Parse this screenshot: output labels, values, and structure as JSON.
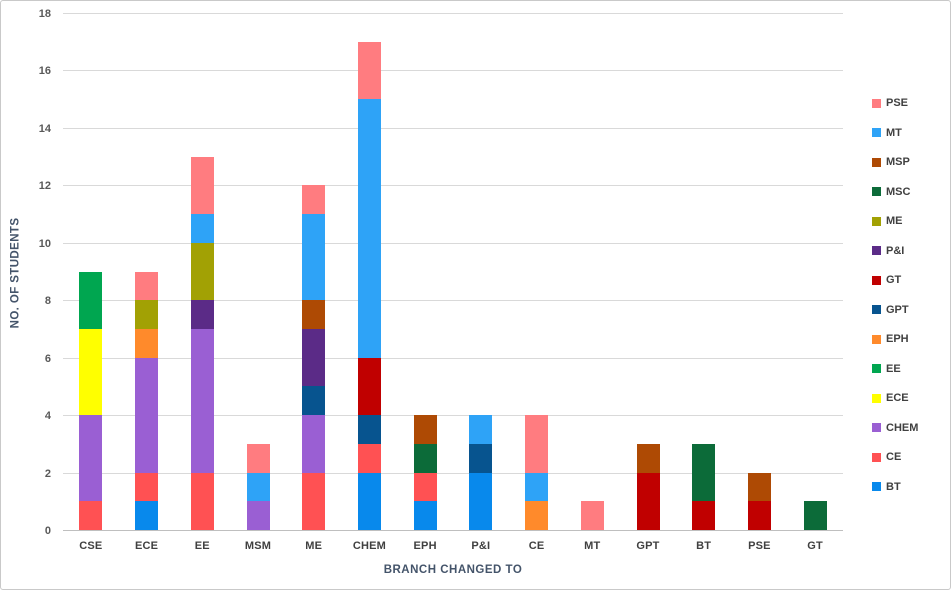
{
  "chart_data": {
    "type": "bar",
    "stacked": true,
    "title": "",
    "xlabel": "BRANCH CHANGED TO",
    "ylabel": "NO. OF STUDENTS",
    "ylim": [
      0,
      18
    ],
    "yticks": [
      0,
      2,
      4,
      6,
      8,
      10,
      12,
      14,
      16,
      18
    ],
    "grid": true,
    "legend_position": "right",
    "categories": [
      "CSE",
      "ECE",
      "EE",
      "MSM",
      "ME",
      "CHEM",
      "EPH",
      "P&I",
      "CE",
      "MT",
      "GPT",
      "BT",
      "PSE",
      "GT"
    ],
    "series": [
      {
        "name": "BT",
        "color": "#0889EC",
        "values": [
          0,
          1,
          0,
          0,
          0,
          2,
          1,
          2,
          0,
          0,
          0,
          0,
          0,
          0
        ]
      },
      {
        "name": "CE",
        "color": "#FF5153",
        "values": [
          1,
          1,
          2,
          0,
          2,
          1,
          1,
          0,
          0,
          0,
          0,
          0,
          0,
          0
        ]
      },
      {
        "name": "CHEM",
        "color": "#9A5FD3",
        "values": [
          3,
          4,
          5,
          1,
          2,
          0,
          0,
          0,
          0,
          0,
          0,
          0,
          0,
          0
        ]
      },
      {
        "name": "ECE",
        "color": "#FFFF00",
        "values": [
          3,
          0,
          0,
          0,
          0,
          0,
          0,
          0,
          0,
          0,
          0,
          0,
          0,
          0
        ]
      },
      {
        "name": "EE",
        "color": "#00A650",
        "values": [
          2,
          0,
          0,
          0,
          0,
          0,
          0,
          0,
          0,
          0,
          0,
          0,
          0,
          0
        ]
      },
      {
        "name": "EPH",
        "color": "#FF8A2B",
        "values": [
          0,
          1,
          0,
          0,
          0,
          0,
          0,
          0,
          1,
          0,
          0,
          0,
          0,
          0
        ]
      },
      {
        "name": "GPT",
        "color": "#07548F",
        "values": [
          0,
          0,
          0,
          0,
          1,
          1,
          0,
          1,
          0,
          0,
          0,
          0,
          0,
          0
        ]
      },
      {
        "name": "GT",
        "color": "#C00000",
        "values": [
          0,
          0,
          0,
          0,
          0,
          2,
          0,
          0,
          0,
          0,
          2,
          1,
          1,
          0
        ]
      },
      {
        "name": "P&I",
        "color": "#5B2B87",
        "values": [
          0,
          0,
          1,
          0,
          2,
          0,
          0,
          0,
          0,
          0,
          0,
          0,
          0,
          0
        ]
      },
      {
        "name": "ME",
        "color": "#A2A104",
        "values": [
          0,
          1,
          2,
          0,
          0,
          0,
          0,
          0,
          0,
          0,
          0,
          0,
          0,
          0
        ]
      },
      {
        "name": "MSC",
        "color": "#0C6B39",
        "values": [
          0,
          0,
          0,
          0,
          0,
          0,
          1,
          0,
          0,
          0,
          0,
          2,
          0,
          1
        ]
      },
      {
        "name": "MSP",
        "color": "#AE4A04",
        "values": [
          0,
          0,
          0,
          0,
          1,
          0,
          1,
          0,
          0,
          0,
          1,
          0,
          1,
          0
        ]
      },
      {
        "name": "MT",
        "color": "#2EA3F7",
        "values": [
          0,
          0,
          1,
          1,
          3,
          9,
          0,
          1,
          1,
          0,
          0,
          0,
          0,
          0
        ]
      },
      {
        "name": "PSE",
        "color": "#FF7C80",
        "values": [
          0,
          1,
          2,
          1,
          1,
          2,
          0,
          0,
          2,
          1,
          0,
          0,
          0,
          0
        ]
      }
    ],
    "legend_order_top_to_bottom": [
      "PSE",
      "MT",
      "MSP",
      "MSC",
      "ME",
      "P&I",
      "GT",
      "GPT",
      "EPH",
      "EE",
      "ECE",
      "CHEM",
      "CE",
      "BT"
    ],
    "bar_totals": {
      "CSE": 9,
      "ECE": 9,
      "EE": 13,
      "MSM": 3,
      "ME": 12,
      "CHEM": 17,
      "EPH": 4,
      "P&I": 4,
      "CE": 4,
      "MT": 1,
      "GPT": 3,
      "BT": 3,
      "PSE": 2,
      "GT": 1
    }
  },
  "styles": {
    "background": "#FFFFFF",
    "border_color": "#C9C9C9",
    "grid_color": "#D9D9D9",
    "axis_line_color": "#BFBFBF",
    "tick_label_color": "#595959",
    "category_label_color": "#404040",
    "axis_title_color": "#44546A",
    "legend_label_color": "#404040"
  }
}
